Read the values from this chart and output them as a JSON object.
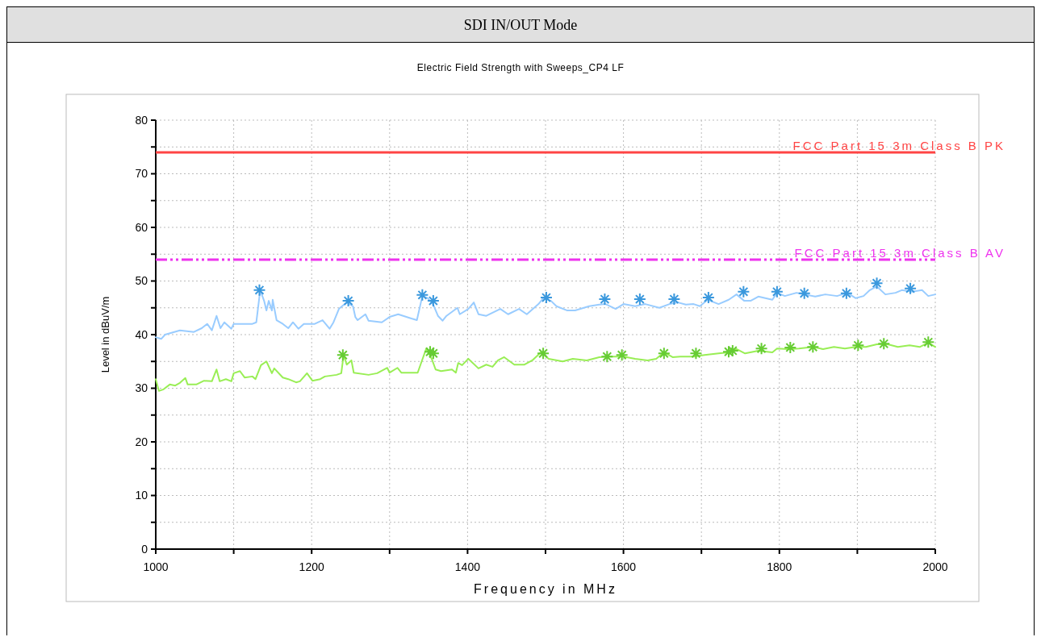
{
  "chart_data": {
    "type": "line",
    "title": "SDI IN/OUT Mode",
    "subtitle": "Electric Field Strength with Sweeps_CP4 LF",
    "xlabel": "Frequency in MHz",
    "ylabel": "Level in dBuV/m",
    "xlim": [
      1000,
      2000
    ],
    "xticks": [
      1000,
      {
        "value": 1100,
        "label": null
      },
      1200,
      {
        "value": 1300,
        "label": null
      },
      1400,
      {
        "value": 1500,
        "label": null
      },
      1600,
      {
        "value": 1700,
        "label": null
      },
      1800,
      {
        "value": 1900,
        "label": null
      },
      2000
    ],
    "ylim": [
      0,
      80
    ],
    "yticks": [
      0,
      {
        "value": 5,
        "label": null
      },
      10,
      {
        "value": 15,
        "label": null
      },
      20,
      {
        "value": 25,
        "label": null
      },
      30,
      {
        "value": 35,
        "label": null
      },
      40,
      {
        "value": 45,
        "label": null
      },
      50,
      {
        "value": 55,
        "label": null
      },
      60,
      {
        "value": 65,
        "label": null
      },
      70,
      {
        "value": 75,
        "label": null
      },
      80
    ],
    "grid": true,
    "ref_lines": [
      {
        "axis": "y",
        "value": 74,
        "label": "FCC Part 15 3m Class B PK",
        "color": "#ff4444",
        "line_style": "solid"
      },
      {
        "axis": "y",
        "value": 54,
        "label": "FCC Part 15 3m Class B AV",
        "color": "#ee33ee",
        "line_style": "dashed"
      }
    ],
    "series": [
      {
        "color": "#99ccff",
        "x": [
          1000,
          1007,
          1012,
          1031,
          1049,
          1059,
          1066,
          1072,
          1078,
          1083,
          1088,
          1097,
          1100,
          1124,
          1129,
          1134,
          1139,
          1142,
          1145,
          1149,
          1150,
          1155,
          1163,
          1170,
          1176,
          1183,
          1190,
          1204,
          1214,
          1223,
          1228,
          1235,
          1245,
          1253,
          1256,
          1259,
          1269,
          1273,
          1290,
          1300,
          1311,
          1328,
          1335,
          1342,
          1349,
          1356,
          1362,
          1368,
          1373,
          1387,
          1390,
          1401,
          1408,
          1414,
          1424,
          1442,
          1452,
          1466,
          1476,
          1491,
          1497,
          1507,
          1514,
          1528,
          1538,
          1556,
          1569,
          1577,
          1590,
          1600,
          1615,
          1628,
          1646,
          1659,
          1670,
          1680,
          1690,
          1698,
          1708,
          1722,
          1735,
          1745,
          1755,
          1763,
          1773,
          1791,
          1797,
          1807,
          1822,
          1832,
          1846,
          1859,
          1874,
          1887,
          1898,
          1908,
          1916,
          1925,
          1936,
          1949,
          1957,
          1970,
          1983,
          1991,
          2000
        ],
        "values": [
          39.5,
          39.2,
          40.0,
          40.8,
          40.5,
          41.2,
          42.0,
          40.8,
          43.5,
          41.2,
          42.3,
          41.1,
          42.0,
          42.0,
          42.3,
          48.3,
          46.3,
          44.5,
          46.3,
          44.5,
          46.5,
          42.7,
          42.0,
          41.2,
          42.3,
          41.1,
          42.0,
          42.0,
          42.7,
          41.1,
          42.3,
          44.8,
          46.0,
          45.3,
          43.3,
          42.7,
          43.8,
          42.6,
          42.3,
          43.3,
          43.8,
          43.0,
          42.7,
          47.2,
          46.8,
          45.6,
          43.5,
          42.6,
          43.5,
          45.0,
          43.8,
          44.8,
          46.0,
          43.8,
          43.5,
          44.8,
          43.8,
          44.8,
          43.8,
          45.7,
          46.8,
          46.3,
          45.3,
          44.5,
          44.5,
          45.3,
          45.6,
          45.7,
          44.8,
          45.7,
          45.3,
          45.7,
          45.0,
          45.7,
          46.0,
          45.6,
          45.7,
          45.3,
          46.5,
          45.7,
          46.5,
          47.5,
          46.3,
          46.3,
          47.1,
          46.5,
          47.8,
          47.2,
          47.8,
          47.5,
          47.1,
          47.5,
          47.2,
          47.8,
          46.8,
          47.2,
          48.3,
          49.0,
          47.5,
          47.8,
          48.3,
          48.0,
          48.3,
          47.2,
          47.5
        ]
      },
      {
        "type": "scatter",
        "marker": "cross",
        "color": "#3a98dd",
        "x": [
          1133,
          1247,
          1342,
          1356,
          1501,
          1576,
          1621,
          1665,
          1709,
          1754,
          1797,
          1832,
          1886,
          1925,
          1968
        ],
        "values": [
          48.3,
          46.3,
          47.4,
          46.3,
          46.9,
          46.6,
          46.6,
          46.6,
          46.9,
          48.0,
          48.0,
          47.7,
          47.7,
          49.6,
          48.6
        ]
      },
      {
        "color": "#99ee55",
        "x": [
          1000,
          1004,
          1010,
          1018,
          1025,
          1031,
          1038,
          1041,
          1052,
          1062,
          1072,
          1078,
          1082,
          1090,
          1097,
          1100,
          1108,
          1114,
          1124,
          1128,
          1135,
          1142,
          1149,
          1152,
          1163,
          1170,
          1180,
          1185,
          1194,
          1201,
          1211,
          1217,
          1232,
          1238,
          1241,
          1245,
          1251,
          1254,
          1273,
          1284,
          1297,
          1300,
          1310,
          1315,
          1328,
          1336,
          1347,
          1354,
          1359,
          1366,
          1380,
          1385,
          1388,
          1393,
          1401,
          1414,
          1424,
          1432,
          1439,
          1447,
          1460,
          1473,
          1483,
          1494,
          1504,
          1522,
          1535,
          1553,
          1569,
          1580,
          1600,
          1615,
          1631,
          1642,
          1652,
          1663,
          1673,
          1690,
          1704,
          1722,
          1735,
          1745,
          1756,
          1773,
          1791,
          1797,
          1812,
          1825,
          1843,
          1856,
          1870,
          1884,
          1898,
          1911,
          1925,
          1939,
          1952,
          1967,
          1980,
          1991,
          2000
        ],
        "values": [
          31.7,
          29.5,
          29.8,
          30.7,
          30.5,
          31.0,
          31.9,
          30.7,
          30.7,
          31.4,
          31.3,
          33.5,
          31.3,
          31.7,
          31.3,
          32.8,
          33.2,
          32.0,
          32.2,
          31.7,
          34.3,
          35.0,
          32.8,
          33.7,
          32.0,
          31.7,
          31.1,
          31.3,
          32.8,
          31.4,
          31.7,
          32.2,
          32.5,
          32.8,
          36.2,
          34.4,
          35.2,
          32.9,
          32.5,
          32.8,
          33.8,
          32.9,
          33.8,
          32.9,
          32.9,
          32.9,
          37.4,
          35.5,
          33.5,
          33.2,
          33.5,
          32.9,
          34.7,
          34.3,
          35.5,
          33.7,
          34.4,
          34.0,
          35.2,
          35.8,
          34.4,
          34.4,
          35.2,
          36.7,
          35.5,
          35.0,
          35.5,
          35.2,
          35.8,
          35.9,
          35.9,
          35.5,
          35.2,
          35.5,
          36.7,
          35.8,
          35.9,
          35.9,
          36.2,
          36.5,
          36.7,
          37.3,
          36.5,
          37.0,
          36.7,
          37.4,
          37.3,
          37.4,
          37.7,
          37.3,
          37.7,
          37.4,
          37.7,
          37.7,
          38.2,
          38.2,
          37.7,
          38.0,
          37.7,
          38.5,
          37.7
        ]
      },
      {
        "type": "scatter",
        "marker": "cross",
        "color": "#66cc33",
        "x": [
          1240,
          1352,
          1356,
          1497,
          1579,
          1598,
          1652,
          1693,
          1735,
          1740,
          1777,
          1814,
          1843,
          1901,
          1934,
          1991
        ],
        "values": [
          36.2,
          36.8,
          36.5,
          36.5,
          35.9,
          36.2,
          36.5,
          36.5,
          36.8,
          37.0,
          37.4,
          37.6,
          37.7,
          38.0,
          38.3,
          38.6
        ]
      }
    ]
  }
}
